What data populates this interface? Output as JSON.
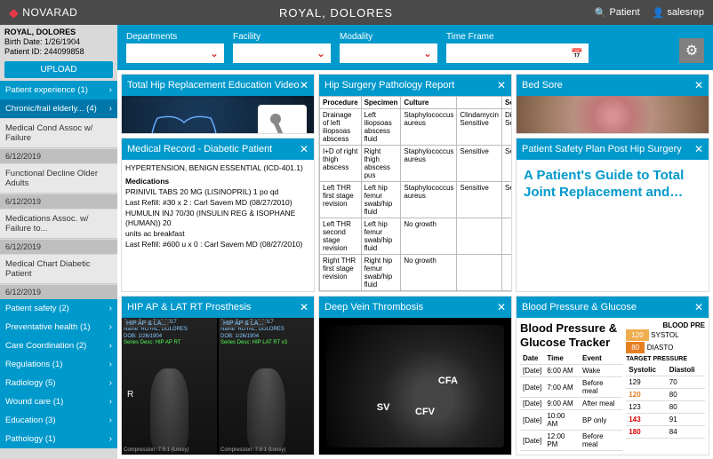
{
  "topbar": {
    "brand": "NOVARAD",
    "patient_name": "ROYAL, DOLORES",
    "nav_patient": "Patient",
    "nav_user": "salesrep"
  },
  "filters": {
    "departments": "Departments",
    "facility": "Facility",
    "modality": "Modality",
    "timeframe": "Time Frame"
  },
  "patient": {
    "name": "ROYAL, DOLORES",
    "birth": "Birth Date: 1/26/1904",
    "id": "Patient ID: 244099858",
    "upload": "UPLOAD"
  },
  "sidebar": [
    {
      "type": "blue",
      "label": "Patient experience (1)"
    },
    {
      "type": "blue-active",
      "label": "Chronic/frail elderly... (4)"
    },
    {
      "type": "light",
      "label": "Medical Cond Assoc w/ Failure"
    },
    {
      "type": "date",
      "label": "6/12/2019"
    },
    {
      "type": "light",
      "label": "Functional Decline Older Adults"
    },
    {
      "type": "date",
      "label": "6/12/2019"
    },
    {
      "type": "light",
      "label": "Medications Assoc. w/ Failure to..."
    },
    {
      "type": "date",
      "label": "6/12/2019"
    },
    {
      "type": "light",
      "label": "Medical Chart Diabetic Patient"
    },
    {
      "type": "date",
      "label": "6/12/2019"
    },
    {
      "type": "blue",
      "label": "Patient safety (2)"
    },
    {
      "type": "blue",
      "label": "Preventative health (1)"
    },
    {
      "type": "blue",
      "label": "Care Coordination (2)"
    },
    {
      "type": "blue",
      "label": "Regulations (1)"
    },
    {
      "type": "blue",
      "label": "Radiology (5)"
    },
    {
      "type": "blue",
      "label": "Wound care (1)"
    },
    {
      "type": "blue",
      "label": "Education (3)"
    },
    {
      "type": "blue",
      "label": "Pathology (1)"
    }
  ],
  "panels": {
    "hip_edu": "Total Hip Replacement Education Video",
    "pathology": {
      "title": "Hip Surgery Pathology Report",
      "headers": [
        "Procedure",
        "Specimen",
        "Culture",
        "",
        "Sensitivities"
      ],
      "rows": [
        [
          "Drainage of left iliopsoas abscess",
          "Left iliopsoas abscess fluid",
          "Staphylococcus aureus",
          "Clindamycin Sensitive",
          "Di/Flucloxacillin Sensitive"
        ],
        [
          "I+D of right thigh abscess",
          "Right thigh abscess pus",
          "Staphylococcus aureus",
          "Sensitive",
          "Sensitive"
        ],
        [
          "Left THR first stage revision",
          "Left hip femur swab/hip fluid",
          "Staphylococcus aureus",
          "Sensitive",
          "Sensitive"
        ],
        [
          "Left THR second stage revision",
          "Left hip femur swab/hip fluid",
          "No growth",
          "",
          ""
        ],
        [
          "Right THR first stage revision",
          "Right hip femur swab/hip fluid",
          "No growth",
          "",
          ""
        ]
      ]
    },
    "bedsore": "Bed Sore",
    "medrec": {
      "title": "Medical Record - Diabetic Patient",
      "diag": "HYPERTENSION, BENIGN ESSENTIAL (ICD-401.1)",
      "med_header": "Medications",
      "lines": [
        "PRINIVIL TABS 20 MG (LISINOPRIL) 1 po qd",
        "Last Refill: #30 x 2 : Carl Savem MD (08/27/2010)",
        "HUMULIN INJ 70/30 (INSULIN REG & ISOPHANE (HUMAN)) 20",
        "units ac breakfast",
        "Last Refill: #600 u x 0 : Carl Savem MD (08/27/2010)"
      ]
    },
    "safety": {
      "title": "Patient Safety Plan Post Hip Surgery",
      "body": "A Patient's Guide to Total Joint Replacement and…"
    },
    "xray": {
      "title": "HIP AP &amp; LAT RT Prosthesis",
      "tab": "HIP AP & LA...",
      "study": "Study Date: 7/13/2017",
      "name": "Name: ROYAL, DOLORES",
      "dob": "DOB: 1/26/1904",
      "series1": "Series Desc: HIP AP RT",
      "series2": "Series Desc: HIP LAT RT x3",
      "r": "R",
      "comp": "Compression: 7.5:1 (Lossy)"
    },
    "dvt": "Deep Vein Thrombosis",
    "dvt_labels": {
      "sv": "SV",
      "cfa": "CFA",
      "cfv": "CFV"
    },
    "bp": {
      "title": "Blood Pressure &amp; Glucose",
      "tracker": "Blood Pressure & Glucose Tracker",
      "headers": [
        "Date",
        "Time",
        "Event"
      ],
      "rows": [
        [
          "[Date]",
          "6:00 AM",
          "Wake"
        ],
        [
          "[Date]",
          "7:00 AM",
          "Before meal"
        ],
        [
          "[Date]",
          "9:00 AM",
          "After meal"
        ],
        [
          "[Date]",
          "10:00 AM",
          "BP only"
        ],
        [
          "[Date]",
          "12:00 PM",
          "Before meal"
        ]
      ],
      "right_header": "BLOOD PRE",
      "systolic_badge": "120",
      "systolic_label": "SYSTOL",
      "diastolic_badge": "80",
      "diastolic_label": "DIASTO",
      "target": "TARGET PRESSURE",
      "right_cols": [
        "Systolic",
        "Diastoli"
      ],
      "right_rows": [
        [
          "129",
          "70",
          ""
        ],
        [
          "120",
          "80",
          "orange"
        ],
        [
          "123",
          "80",
          ""
        ],
        [
          "143",
          "91",
          "red"
        ],
        [
          "180",
          "84",
          "red"
        ]
      ]
    }
  },
  "colors": {
    "primary": "#0099cc",
    "topbar": "#4a4a4a",
    "accent": "#e63946"
  }
}
